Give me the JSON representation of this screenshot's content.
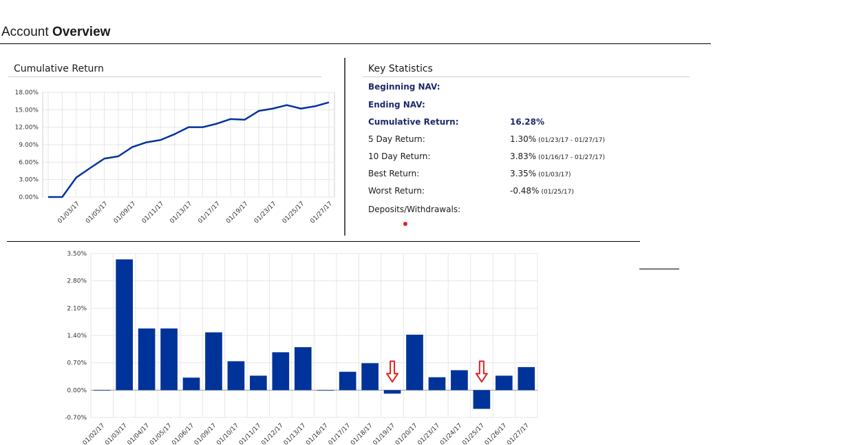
{
  "header": {
    "title_prefix": "Account",
    "title_bold": "Overview"
  },
  "cumulative": {
    "title": "Cumulative Return"
  },
  "stats": {
    "title": "Key Statistics",
    "rows": [
      {
        "label": "Beginning NAV:",
        "value": "",
        "sub": ""
      },
      {
        "label": "Ending NAV:",
        "value": "",
        "sub": ""
      },
      {
        "label": "Cumulative Return:",
        "value": "16.28%",
        "sub": ""
      },
      {
        "label": "5 Day Return:",
        "value": "1.30%",
        "sub": "(01/23/17 - 01/27/17)"
      },
      {
        "label": "10 Day Return:",
        "value": "3.83%",
        "sub": "(01/16/17 - 01/27/17)"
      },
      {
        "label": "Best Return:",
        "value": "3.35%",
        "sub": "(01/03/17)"
      },
      {
        "label": "Worst Return:",
        "value": "-0.48%",
        "sub": "(01/25/17)"
      },
      {
        "label": "Deposits/Withdrawals:",
        "value": "",
        "sub": ""
      }
    ]
  },
  "colors": {
    "series": "#003399",
    "marker": "#e02020",
    "grid": "#e6e6e6"
  },
  "chart_data": [
    {
      "type": "line",
      "title": "Cumulative Return",
      "xlabel": "",
      "ylabel": "",
      "ylim": [
        0,
        18
      ],
      "yticks": [
        "0.00%",
        "3.00%",
        "6.00%",
        "9.00%",
        "12.00%",
        "15.00%",
        "18.00%"
      ],
      "ytick_values": [
        0,
        3,
        6,
        9,
        12,
        15,
        18
      ],
      "xtick_labels": [
        "01/03/17",
        "01/05/17",
        "01/09/17",
        "01/11/17",
        "01/13/17",
        "01/17/17",
        "01/19/17",
        "01/23/17",
        "01/25/17",
        "01/27/17"
      ],
      "xtick_index": [
        2,
        4,
        6,
        8,
        10,
        12,
        14,
        16,
        18,
        20
      ],
      "x": [
        "12/30/16",
        "01/02/17",
        "01/03/17",
        "01/04/17",
        "01/05/17",
        "01/06/17",
        "01/09/17",
        "01/10/17",
        "01/11/17",
        "01/12/17",
        "01/13/17",
        "01/16/17",
        "01/17/17",
        "01/18/17",
        "01/19/17",
        "01/20/17",
        "01/23/17",
        "01/24/17",
        "01/25/17",
        "01/26/17",
        "01/27/17"
      ],
      "values": [
        0.0,
        0.0,
        3.35,
        5.0,
        6.6,
        7.0,
        8.6,
        9.4,
        9.8,
        10.8,
        12.0,
        12.0,
        12.6,
        13.4,
        13.3,
        14.8,
        15.2,
        15.8,
        15.2,
        15.6,
        16.28
      ],
      "grid": true
    },
    {
      "type": "bar",
      "title": "",
      "xlabel": "",
      "ylabel": "",
      "ylim": [
        -0.7,
        3.5
      ],
      "yticks": [
        "-0.70%",
        "0.00%",
        "0.70%",
        "1.40%",
        "2.10%",
        "2.80%",
        "3.50%"
      ],
      "ytick_values": [
        -0.7,
        0,
        0.7,
        1.4,
        2.1,
        2.8,
        3.5
      ],
      "categories": [
        "01/02/17",
        "01/03/17",
        "01/04/17",
        "01/05/17",
        "01/06/17",
        "01/09/17",
        "01/10/17",
        "01/11/17",
        "01/12/17",
        "01/13/17",
        "01/16/17",
        "01/17/17",
        "01/18/17",
        "01/19/17",
        "01/20/17",
        "01/23/17",
        "01/24/17",
        "01/25/17",
        "01/26/17",
        "01/27/17"
      ],
      "values": [
        0.0,
        3.35,
        1.58,
        1.58,
        0.32,
        1.48,
        0.74,
        0.37,
        0.97,
        1.1,
        0.0,
        0.47,
        0.69,
        -0.09,
        1.42,
        0.33,
        0.51,
        -0.48,
        0.37,
        0.59
      ],
      "annotations": [
        {
          "category": "01/19/17",
          "marker": "down-arrow"
        },
        {
          "category": "01/25/17",
          "marker": "down-arrow"
        }
      ],
      "grid": true
    }
  ]
}
